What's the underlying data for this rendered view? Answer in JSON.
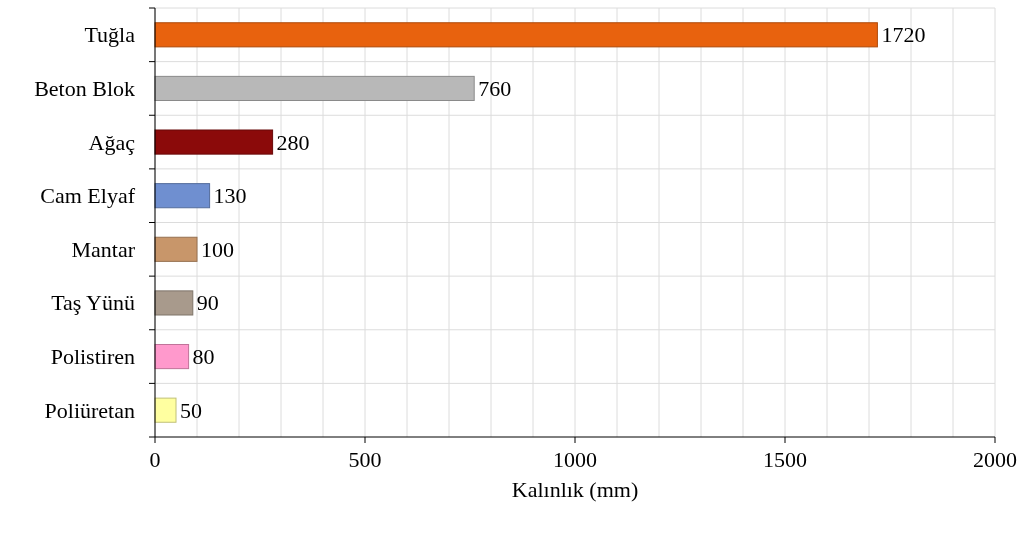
{
  "chart_data": {
    "type": "bar",
    "orientation": "horizontal",
    "categories": [
      "Tuğla",
      "Beton Blok",
      "Ağaç",
      "Cam Elyaf",
      "Mantar",
      "Taş Yünü",
      "Polistiren",
      "Poliüretan"
    ],
    "values": [
      1720,
      760,
      280,
      130,
      100,
      90,
      80,
      50
    ],
    "colors": [
      "#e8620e",
      "#b8b8b8",
      "#8b0a0a",
      "#6f8fd0",
      "#c8966a",
      "#a89a8c",
      "#ff99cc",
      "#ffffa0"
    ],
    "xlim": [
      0,
      2000
    ],
    "xticks": [
      0,
      {
        "value": 100,
        "label": null
      },
      {
        "value": 200,
        "label": null
      },
      {
        "value": 300,
        "label": null
      },
      {
        "value": 400,
        "label": null
      },
      500,
      {
        "value": 600,
        "label": null
      },
      {
        "value": 700,
        "label": null
      },
      {
        "value": 800,
        "label": null
      },
      {
        "value": 900,
        "label": null
      },
      1000,
      {
        "value": 1100,
        "label": null
      },
      {
        "value": 1200,
        "label": null
      },
      {
        "value": 1300,
        "label": null
      },
      {
        "value": 1400,
        "label": null
      },
      1500,
      {
        "value": 1600,
        "label": null
      },
      {
        "value": 1700,
        "label": null
      },
      {
        "value": 1800,
        "label": null
      },
      {
        "value": 1900,
        "label": null
      },
      2000
    ],
    "xlabel": "Kalınlık (mm)",
    "grid": true,
    "data_labels": true
  }
}
